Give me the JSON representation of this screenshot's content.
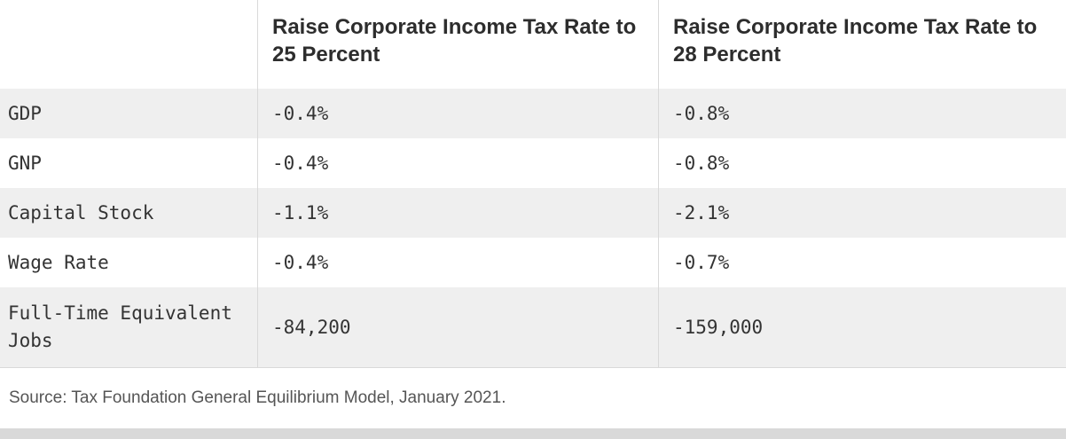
{
  "chart_data": {
    "type": "table",
    "columns": [
      "",
      "Raise Corporate Income Tax Rate to 25 Percent",
      "Raise Corporate Income Tax Rate to 28 Percent"
    ],
    "rows": [
      [
        "GDP",
        "-0.4%",
        "-0.8%"
      ],
      [
        "GNP",
        "-0.4%",
        "-0.8%"
      ],
      [
        "Capital Stock",
        "-1.1%",
        "-2.1%"
      ],
      [
        "Wage Rate",
        "-0.4%",
        "-0.7%"
      ],
      [
        "Full-Time Equivalent Jobs",
        "-84,200",
        "-159,000"
      ]
    ],
    "source": "Source: Tax Foundation General Equilibrium Model, January 2021.",
    "layout": {
      "striped_rows": true,
      "stripe_color": "#efefef",
      "border_color": "#d9d9d9"
    }
  },
  "colors": {
    "row_stripe": "#efefef",
    "border": "#d9d9d9",
    "header_text": "#2d2d2d",
    "data_text": "#333333",
    "source_text": "#555555"
  }
}
